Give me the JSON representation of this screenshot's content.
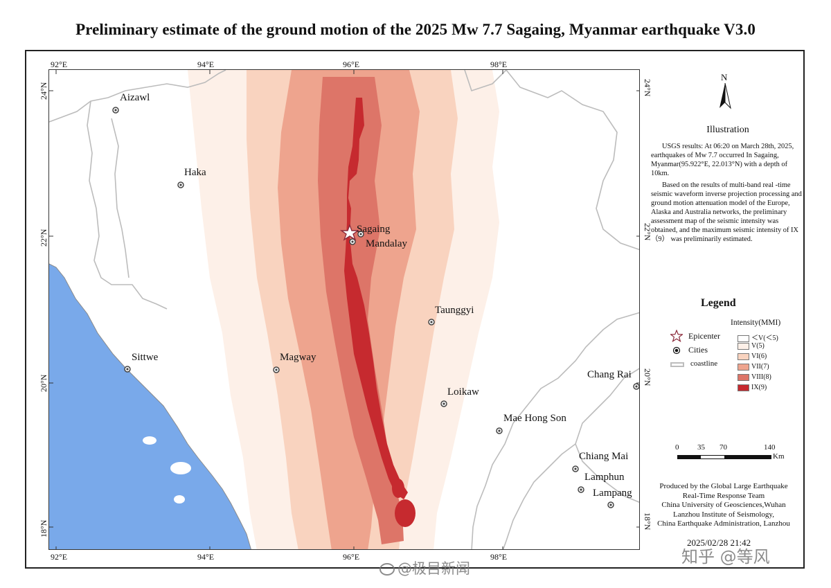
{
  "title": "Preliminary estimate of the ground motion of the 2025 Mw 7.7 Sagaing, Myanmar earthquake V3.0",
  "colors": {
    "sea": "#79a9ea",
    "border_line": "#bcbcbc",
    "frame": "#222222",
    "mmi_lt5": "#ffffff",
    "mmi_5": "#fdf0e8",
    "mmi_6": "#f9d3bf",
    "mmi_7": "#eea48e",
    "mmi_8": "#dd7568",
    "mmi_9": "#c62a2f"
  },
  "grid_labels": {
    "top": [
      "92°E",
      "94°E",
      "96°E",
      "98°E"
    ],
    "bottom": [
      "92°E",
      "94°E",
      "96°E",
      "98°E"
    ],
    "left": [
      "24°N",
      "22°N",
      "20°N",
      "18°N"
    ],
    "right": [
      "24°N",
      "22°N",
      "20°N",
      "18°N"
    ]
  },
  "cities": [
    {
      "name": "Aizawl"
    },
    {
      "name": "Haka"
    },
    {
      "name": "Sagaing"
    },
    {
      "name": "Mandalay"
    },
    {
      "name": "Taunggyi"
    },
    {
      "name": "Sittwe"
    },
    {
      "name": "Magway"
    },
    {
      "name": "Loikaw"
    },
    {
      "name": "Chang Rai"
    },
    {
      "name": "Mae Hong Son"
    },
    {
      "name": "Chiang Mai"
    },
    {
      "name": "Lamphun"
    },
    {
      "name": "Lampang"
    }
  ],
  "north_arrow": {
    "label": "N",
    "icon": "north-arrow-icon"
  },
  "illustration": {
    "title": "Illustration",
    "paragraph1": "USGS results: At 06:20 on March 28th, 2025, earthquakes of Mw 7.7 occurred In Sagaing, Myanmar(95.922°E, 22.013°N) with a depth of 10km.",
    "paragraph2": "Based on the results of multi-band real -time seismic waveform inverse projection processing and ground motion attenuation model of the Europe, Alaska and Australia networks, the preliminary assessment map of the seismic intensity was obtained, and the maximum seismic intensity of IX（9） was preliminarily estimated."
  },
  "legend": {
    "title": "Legend",
    "epicenter": "Epicenter",
    "cities": "Cities",
    "coastline": "coastline",
    "intensity_title": "Intensity(MMI)",
    "intensity_levels": [
      "＜V(＜5)",
      "V(5)",
      "VI(6)",
      "VII(7)",
      "VIII(8)",
      "IX(9)"
    ]
  },
  "scale_bar": {
    "ticks": [
      "0",
      "35",
      "70",
      "140"
    ],
    "unit": "Km"
  },
  "credit": [
    "Produced by the Global Large Earthquake",
    "Real-Time Response Team",
    "China University of Geosciences,Wuhan",
    "Lanzhou Institute of Seismology,",
    "China Earthquake Administration, Lanzhou"
  ],
  "date": "2025/02/28 21:42",
  "watermarks": {
    "weibo": "@极目新闻",
    "zhihu": "知乎 @等风"
  }
}
